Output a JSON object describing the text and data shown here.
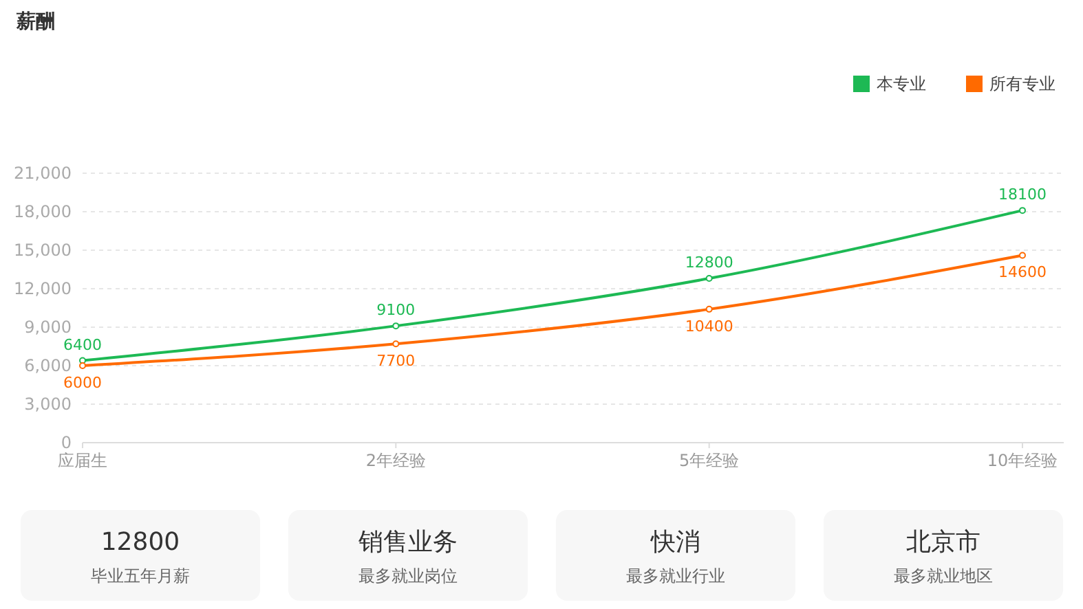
{
  "chart_data": [
    {
      "type": "line",
      "title": "薪酬",
      "categories": [
        "应届生",
        "2年经验",
        "5年经验",
        "10年经验"
      ],
      "series": [
        {
          "name": "本专业",
          "color": "#1db954",
          "values": [
            6400,
            9100,
            12800,
            18100
          ]
        },
        {
          "name": "所有专业",
          "color": "#ff6a00",
          "values": [
            6000,
            7700,
            10400,
            14600
          ]
        }
      ],
      "ylim": [
        0,
        21000
      ],
      "yticks": [
        {
          "value": 0,
          "label": "0"
        },
        {
          "value": 3000,
          "label": "3,000"
        },
        {
          "value": 6000,
          "label": "6,000"
        },
        {
          "value": 9000,
          "label": "9,000"
        },
        {
          "value": 12000,
          "label": "12,000"
        },
        {
          "value": 15000,
          "label": "15,000"
        },
        {
          "value": 18000,
          "label": "18,000"
        },
        {
          "value": 21000,
          "label": "21,000"
        }
      ],
      "grid": "y",
      "legend": "top right",
      "marker": "circle",
      "data_labels": true
    },
    {
      "type": "other",
      "title": "12800",
      "subtitle": "毕业五年月薪"
    },
    {
      "type": "other",
      "title": "销售业务",
      "subtitle": "最多就业岗位"
    },
    {
      "type": "other",
      "title": "快消",
      "subtitle": "最多就业行业"
    },
    {
      "type": "other",
      "title": "北京市",
      "subtitle": "最多就业地区"
    }
  ]
}
